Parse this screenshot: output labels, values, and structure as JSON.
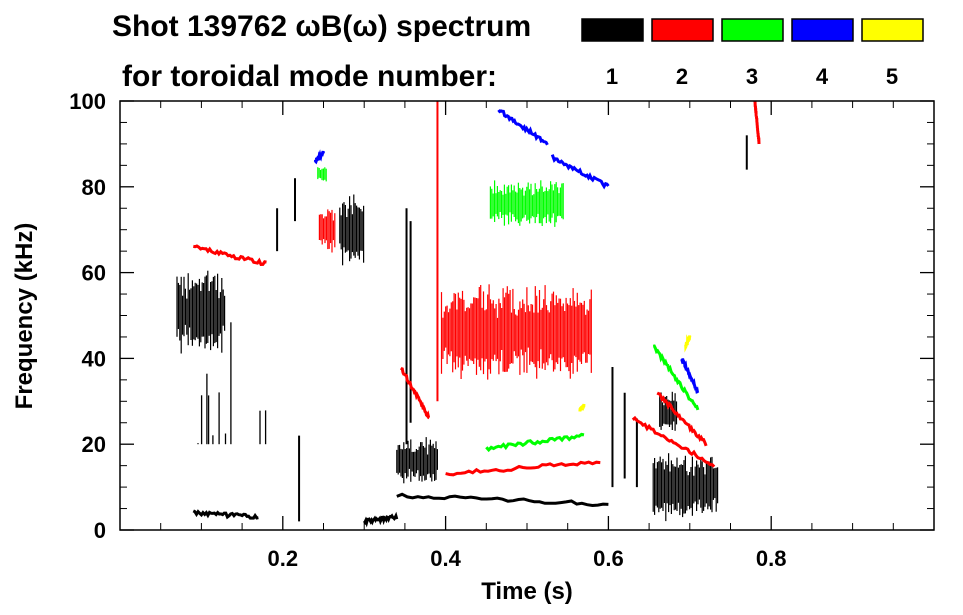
{
  "chart_data": {
    "type": "heatmap",
    "title_line1": "Shot 139762 ωB(ω) spectrum",
    "title_line2": "for toroidal mode number:",
    "xlabel": "Time (s)",
    "ylabel": "Frequency (kHz)",
    "xlim": [
      0.0,
      1.0
    ],
    "ylim": [
      0,
      100
    ],
    "x_ticks": [
      0.2,
      0.4,
      0.6,
      0.8
    ],
    "x_tick_labels": [
      "0.2",
      "0.4",
      "0.6",
      "0.8"
    ],
    "y_ticks": [
      0,
      20,
      40,
      60,
      80,
      100
    ],
    "y_tick_labels": [
      "0",
      "20",
      "40",
      "60",
      "80",
      "100"
    ],
    "legend": [
      {
        "label": "1",
        "color": "#000000"
      },
      {
        "label": "2",
        "color": "#ff0000"
      },
      {
        "label": "3",
        "color": "#00ff00"
      },
      {
        "label": "4",
        "color": "#0000ff"
      },
      {
        "label": "5",
        "color": "#ffff00"
      }
    ],
    "features": [
      {
        "mode": 1,
        "kind": "blob",
        "t": [
          0.07,
          0.13
        ],
        "f": [
          42,
          60
        ]
      },
      {
        "mode": 1,
        "kind": "streaks",
        "t": [
          0.08,
          0.18
        ],
        "f": [
          20,
          50
        ],
        "n": 10
      },
      {
        "mode": 1,
        "kind": "blob",
        "t": [
          0.27,
          0.3
        ],
        "f": [
          62,
          78
        ]
      },
      {
        "mode": 1,
        "kind": "vline",
        "t": 0.22,
        "f": [
          2,
          22
        ]
      },
      {
        "mode": 1,
        "kind": "vline",
        "t": 0.215,
        "f": [
          72,
          82
        ]
      },
      {
        "mode": 1,
        "kind": "vline",
        "t": 0.193,
        "f": [
          65,
          75
        ]
      },
      {
        "mode": 1,
        "kind": "blob",
        "t": [
          0.34,
          0.39
        ],
        "f": [
          11,
          21
        ]
      },
      {
        "mode": 1,
        "kind": "line",
        "t": [
          0.34,
          0.6
        ],
        "f": [
          8,
          6
        ]
      },
      {
        "mode": 1,
        "kind": "vline",
        "t": 0.352,
        "f": [
          20,
          75
        ]
      },
      {
        "mode": 1,
        "kind": "vline",
        "t": 0.357,
        "f": [
          25,
          72
        ]
      },
      {
        "mode": 1,
        "kind": "vline",
        "t": 0.605,
        "f": [
          10,
          38
        ]
      },
      {
        "mode": 1,
        "kind": "vline",
        "t": 0.62,
        "f": [
          12,
          32
        ]
      },
      {
        "mode": 1,
        "kind": "vline",
        "t": 0.635,
        "f": [
          10,
          26
        ]
      },
      {
        "mode": 1,
        "kind": "blob",
        "t": [
          0.655,
          0.735
        ],
        "f": [
          3,
          17
        ]
      },
      {
        "mode": 1,
        "kind": "blob",
        "t": [
          0.663,
          0.685
        ],
        "f": [
          23,
          32
        ]
      },
      {
        "mode": 1,
        "kind": "vline",
        "t": 0.77,
        "f": [
          84,
          92
        ]
      },
      {
        "mode": 1,
        "kind": "line",
        "t": [
          0.09,
          0.17
        ],
        "f": [
          4,
          3
        ]
      },
      {
        "mode": 1,
        "kind": "line",
        "t": [
          0.3,
          0.34
        ],
        "f": [
          2,
          3
        ]
      },
      {
        "mode": 2,
        "kind": "blob",
        "t": [
          0.395,
          0.58
        ],
        "f": [
          36,
          56
        ]
      },
      {
        "mode": 2,
        "kind": "blob",
        "t": [
          0.245,
          0.265
        ],
        "f": [
          65,
          75
        ]
      },
      {
        "mode": 2,
        "kind": "line",
        "t": [
          0.345,
          0.38
        ],
        "f": [
          38,
          26
        ]
      },
      {
        "mode": 2,
        "kind": "line",
        "t": [
          0.4,
          0.59
        ],
        "f": [
          13,
          16
        ]
      },
      {
        "mode": 2,
        "kind": "line",
        "t": [
          0.63,
          0.73
        ],
        "f": [
          26,
          15
        ]
      },
      {
        "mode": 2,
        "kind": "line",
        "t": [
          0.66,
          0.72
        ],
        "f": [
          32,
          20
        ]
      },
      {
        "mode": 2,
        "kind": "line",
        "t": [
          0.78,
          0.785
        ],
        "f": [
          100,
          90
        ]
      },
      {
        "mode": 2,
        "kind": "line",
        "t": [
          0.09,
          0.18
        ],
        "f": [
          66,
          62
        ]
      },
      {
        "mode": 2,
        "kind": "vline",
        "t": 0.39,
        "f": [
          30,
          100
        ]
      },
      {
        "mode": 3,
        "kind": "blob",
        "t": [
          0.455,
          0.545
        ],
        "f": [
          71,
          81
        ]
      },
      {
        "mode": 3,
        "kind": "blob",
        "t": [
          0.243,
          0.255
        ],
        "f": [
          81,
          85
        ]
      },
      {
        "mode": 3,
        "kind": "line",
        "t": [
          0.655,
          0.71
        ],
        "f": [
          43,
          28
        ]
      },
      {
        "mode": 3,
        "kind": "line",
        "t": [
          0.45,
          0.57
        ],
        "f": [
          19,
          22
        ]
      },
      {
        "mode": 4,
        "kind": "line",
        "t": [
          0.465,
          0.525
        ],
        "f": [
          98,
          90
        ]
      },
      {
        "mode": 4,
        "kind": "line",
        "t": [
          0.53,
          0.6
        ],
        "f": [
          87,
          80
        ]
      },
      {
        "mode": 4,
        "kind": "line",
        "t": [
          0.69,
          0.71
        ],
        "f": [
          40,
          32
        ]
      },
      {
        "mode": 4,
        "kind": "line",
        "t": [
          0.24,
          0.25
        ],
        "f": [
          86,
          88
        ]
      },
      {
        "mode": 5,
        "kind": "line",
        "t": [
          0.695,
          0.7
        ],
        "f": [
          43,
          45
        ]
      },
      {
        "mode": 5,
        "kind": "line",
        "t": [
          0.565,
          0.57
        ],
        "f": [
          28,
          29
        ]
      }
    ]
  }
}
